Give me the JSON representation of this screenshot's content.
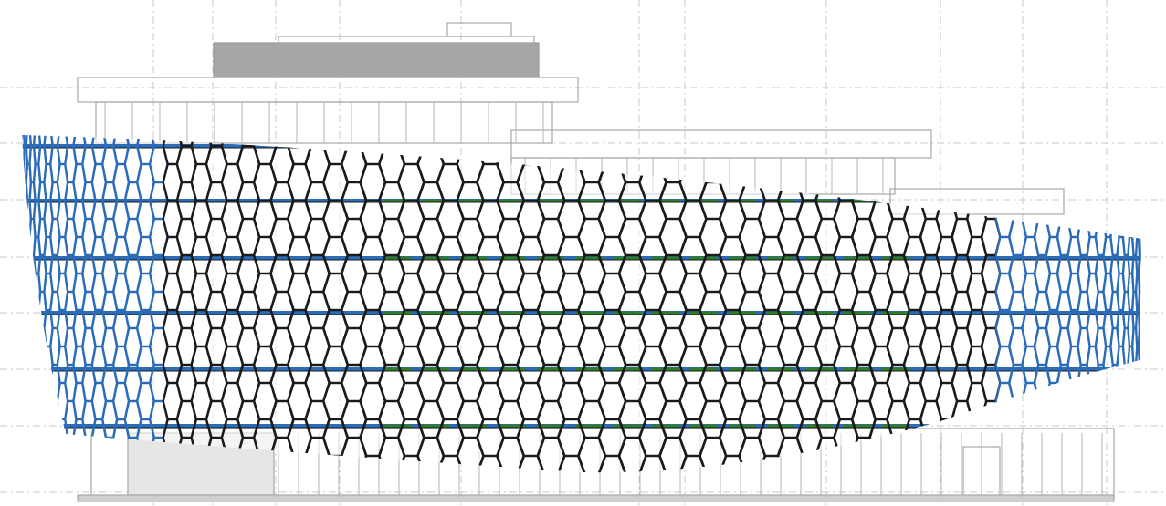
{
  "drawing": {
    "type": "architectural-elevation",
    "colors": {
      "background": "#ffffff",
      "building_outline": "#a8a8a8",
      "roof_fill": "#a6a6a6",
      "grid_lines": "#c8c8c8",
      "facade_structure": "#1a1a1a",
      "facade_edge_members": "#2b6cb8",
      "floor_band_green": "#2f7d2a",
      "floor_band_blue": "#2b6cb8"
    }
  }
}
